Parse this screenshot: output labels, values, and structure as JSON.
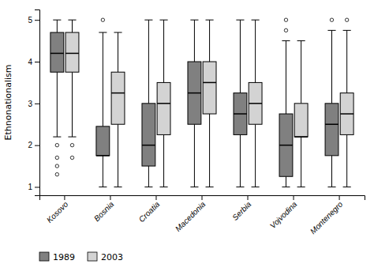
{
  "chart_data": {
    "type": "box",
    "y_label": "Ethnonationalism",
    "categories": [
      "Kosovo",
      "Bosnia",
      "Croatia",
      "Macedonia",
      "Serbia",
      "Vojvodina",
      "Montenegro"
    ],
    "ylim": [
      0.8,
      5.25
    ],
    "yticks": [
      1,
      2,
      3,
      4,
      5
    ],
    "grid": false,
    "legend": "bottom",
    "series": [
      {
        "name": "1989",
        "color": "#808080",
        "values": [
          {
            "whislo": 2.2,
            "q1": 3.75,
            "med": 4.2,
            "q3": 4.7,
            "whishi": 5.0,
            "fliers": [
              2.0,
              1.7,
              1.5,
              1.3
            ]
          },
          {
            "whislo": 1.0,
            "q1": 1.75,
            "med": 1.75,
            "q3": 2.45,
            "whishi": 4.7,
            "fliers": [
              5.0
            ]
          },
          {
            "whislo": 1.0,
            "q1": 1.5,
            "med": 2.0,
            "q3": 3.0,
            "whishi": 5.0,
            "fliers": []
          },
          {
            "whislo": 1.0,
            "q1": 2.5,
            "med": 3.25,
            "q3": 4.0,
            "whishi": 5.0,
            "fliers": []
          },
          {
            "whislo": 1.0,
            "q1": 2.25,
            "med": 2.75,
            "q3": 3.25,
            "whishi": 5.0,
            "fliers": []
          },
          {
            "whislo": 1.0,
            "q1": 1.25,
            "med": 2.0,
            "q3": 2.75,
            "whishi": 4.5,
            "fliers": [
              4.75,
              5.0
            ]
          },
          {
            "whislo": 1.0,
            "q1": 1.75,
            "med": 2.5,
            "q3": 3.0,
            "whishi": 4.75,
            "fliers": [
              5.0
            ]
          }
        ]
      },
      {
        "name": "2003",
        "color": "#d3d3d3",
        "values": [
          {
            "whislo": 2.2,
            "q1": 3.75,
            "med": 4.2,
            "q3": 4.7,
            "whishi": 5.0,
            "fliers": [
              2.0,
              1.7
            ]
          },
          {
            "whislo": 1.0,
            "q1": 2.5,
            "med": 3.25,
            "q3": 3.75,
            "whishi": 4.7,
            "fliers": []
          },
          {
            "whislo": 1.0,
            "q1": 2.25,
            "med": 3.0,
            "q3": 3.5,
            "whishi": 5.0,
            "fliers": []
          },
          {
            "whislo": 1.0,
            "q1": 2.75,
            "med": 3.5,
            "q3": 4.0,
            "whishi": 5.0,
            "fliers": []
          },
          {
            "whislo": 1.0,
            "q1": 2.5,
            "med": 3.0,
            "q3": 3.5,
            "whishi": 5.0,
            "fliers": []
          },
          {
            "whislo": 1.0,
            "q1": 2.2,
            "med": 2.2,
            "q3": 3.0,
            "whishi": 4.5,
            "fliers": []
          },
          {
            "whislo": 1.0,
            "q1": 2.25,
            "med": 2.75,
            "q3": 3.25,
            "whishi": 4.75,
            "fliers": [
              5.0
            ]
          }
        ]
      }
    ]
  }
}
